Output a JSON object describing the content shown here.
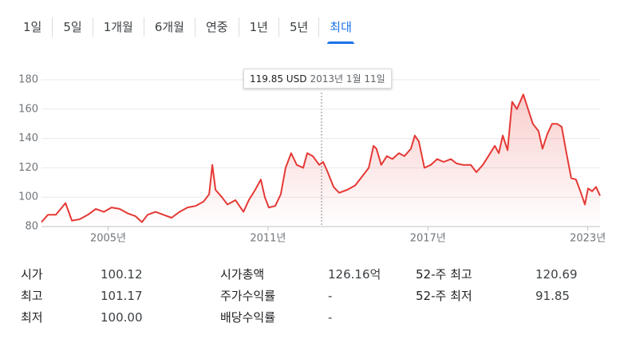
{
  "tabs": [
    "1일",
    "5일",
    "1개월",
    "6개월",
    "연중",
    "1년",
    "5년",
    "최대"
  ],
  "tooltip": {
    "price": "119.85 USD",
    "date": "2013년 1월 11일"
  },
  "chart_data": {
    "type": "line",
    "color": "#e53935",
    "xlim": [
      2002.5,
      2023.46
    ],
    "ylim": [
      80,
      180
    ],
    "yticks": [
      80,
      100,
      120,
      140,
      160,
      180
    ],
    "grid": true,
    "xticks": [
      {
        "value": 2005,
        "label": "2005년"
      },
      {
        "value": 2011,
        "label": "2011년"
      },
      {
        "value": 2017,
        "label": "2017년"
      },
      {
        "value": 2023,
        "label": "2023년"
      }
    ],
    "x": [
      2002.5,
      2002.74,
      2003.04,
      2003.4,
      2003.64,
      2003.94,
      2004.24,
      2004.54,
      2004.84,
      2005.13,
      2005.43,
      2005.73,
      2006.03,
      2006.27,
      2006.48,
      2006.78,
      2007.08,
      2007.38,
      2007.68,
      2007.98,
      2008.28,
      2008.58,
      2008.79,
      2008.91,
      2009.03,
      2009.27,
      2009.48,
      2009.78,
      2010.08,
      2010.28,
      2010.52,
      2010.73,
      2010.88,
      2011.03,
      2011.27,
      2011.48,
      2011.66,
      2011.87,
      2012.08,
      2012.32,
      2012.47,
      2012.68,
      2012.92,
      2013.07,
      2013.22,
      2013.46,
      2013.67,
      2013.97,
      2014.27,
      2014.57,
      2014.78,
      2014.96,
      2015.07,
      2015.25,
      2015.46,
      2015.67,
      2015.91,
      2016.12,
      2016.36,
      2016.51,
      2016.66,
      2016.87,
      2017.11,
      2017.35,
      2017.59,
      2017.86,
      2018.07,
      2018.31,
      2018.61,
      2018.82,
      2019.06,
      2019.27,
      2019.51,
      2019.66,
      2019.81,
      2019.99,
      2020.16,
      2020.34,
      2020.58,
      2020.76,
      2020.94,
      2021.15,
      2021.3,
      2021.48,
      2021.66,
      2021.84,
      2022.02,
      2022.2,
      2022.38,
      2022.56,
      2022.74,
      2022.89,
      2023.01,
      2023.16,
      2023.31,
      2023.46
    ],
    "values": [
      83,
      88,
      88,
      96,
      84,
      85,
      88,
      92,
      90,
      93,
      92,
      89,
      87,
      83,
      88,
      90,
      88,
      86,
      90,
      93,
      94,
      97,
      102,
      122,
      105,
      100,
      95,
      98,
      90,
      98,
      105,
      112,
      100,
      93,
      94,
      102,
      120,
      130,
      122,
      120,
      130,
      128,
      122,
      124,
      118,
      107,
      103,
      105,
      108,
      115,
      120,
      135,
      133,
      122,
      128,
      126,
      130,
      128,
      133,
      142,
      138,
      120,
      122,
      126,
      124,
      126,
      123,
      122,
      122,
      117,
      122,
      128,
      135,
      130,
      142,
      132,
      165,
      160,
      170,
      160,
      150,
      145,
      133,
      143,
      150,
      150,
      148,
      130,
      113,
      112,
      103,
      95,
      106,
      104,
      107,
      101
    ]
  },
  "stats": [
    [
      {
        "k": "시가",
        "v": "100.12"
      },
      {
        "k": "시가총액",
        "v": "126.16억"
      },
      {
        "k": "52-주 최고",
        "v": "120.69"
      }
    ],
    [
      {
        "k": "최고",
        "v": "101.17"
      },
      {
        "k": "주가수익률",
        "v": "-"
      },
      {
        "k": "52-주 최저",
        "v": "91.85"
      }
    ],
    [
      {
        "k": "최저",
        "v": "100.00"
      },
      {
        "k": "배당수익률",
        "v": "-"
      }
    ]
  ]
}
